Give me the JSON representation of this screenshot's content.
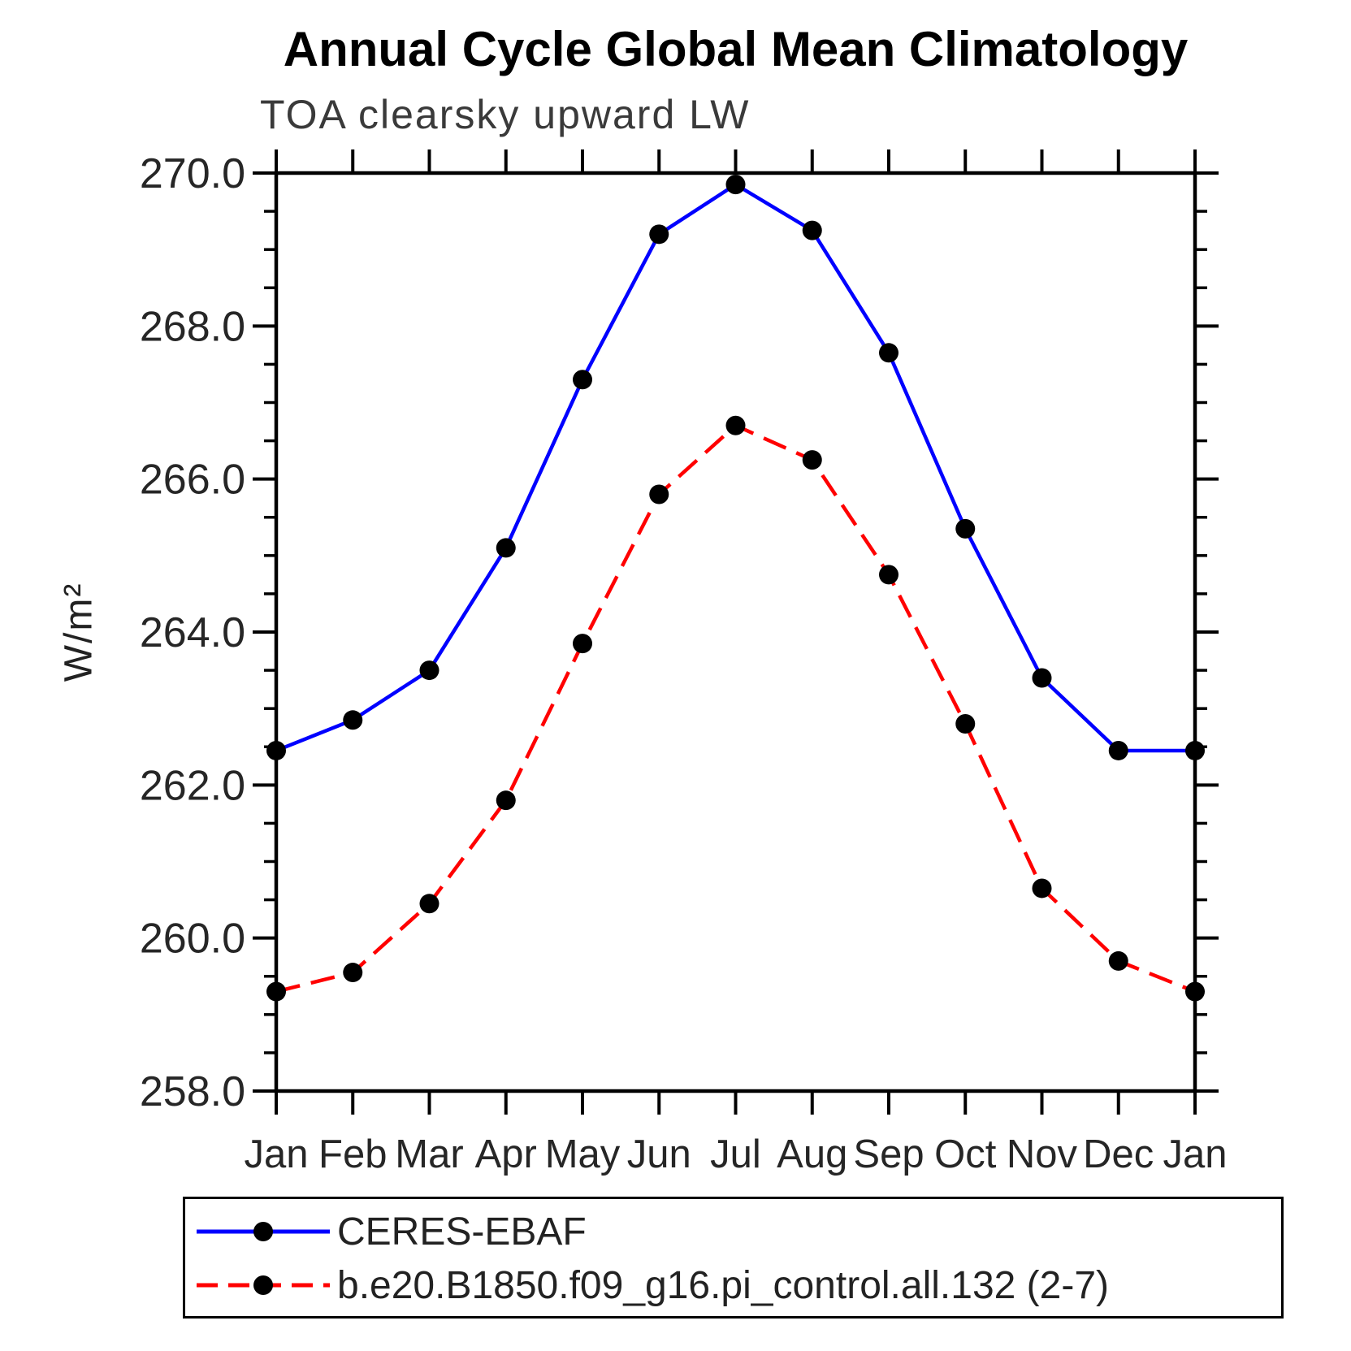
{
  "chart_data": {
    "type": "line",
    "title": "Annual Cycle Global Mean Climatology",
    "subtitle": "TOA clearsky upward LW",
    "ylabel": "W/m²",
    "xlabel": "",
    "x_tick_labels": [
      "Jan",
      "Feb",
      "Mar",
      "Apr",
      "May",
      "Jun",
      "Jul",
      "Aug",
      "Sep",
      "Oct",
      "Nov",
      "Dec",
      "Jan"
    ],
    "ylim": [
      258.0,
      270.0
    ],
    "ytick_major_step": 2.0,
    "ytick_minor_step": 0.5,
    "grid": false,
    "axis_color": "#000000",
    "text_color": "#262626",
    "marker_color": "#000000",
    "legend_position": "bottom-left",
    "series": [
      {
        "name": "CERES-EBAF",
        "line_color": "#0000ff",
        "line_style": "solid",
        "marker": "circle",
        "values": [
          262.45,
          262.85,
          263.5,
          265.1,
          267.3,
          269.2,
          269.85,
          269.25,
          267.65,
          265.35,
          263.4,
          262.45,
          262.45
        ]
      },
      {
        "name": "b.e20.B1850.f09_g16.pi_control.all.132 (2-7)",
        "line_color": "#ff0000",
        "line_style": "dashed",
        "marker": "circle",
        "values": [
          259.3,
          259.55,
          260.45,
          261.8,
          263.85,
          265.8,
          266.7,
          266.25,
          264.75,
          262.8,
          260.65,
          259.7,
          259.3
        ]
      }
    ]
  }
}
